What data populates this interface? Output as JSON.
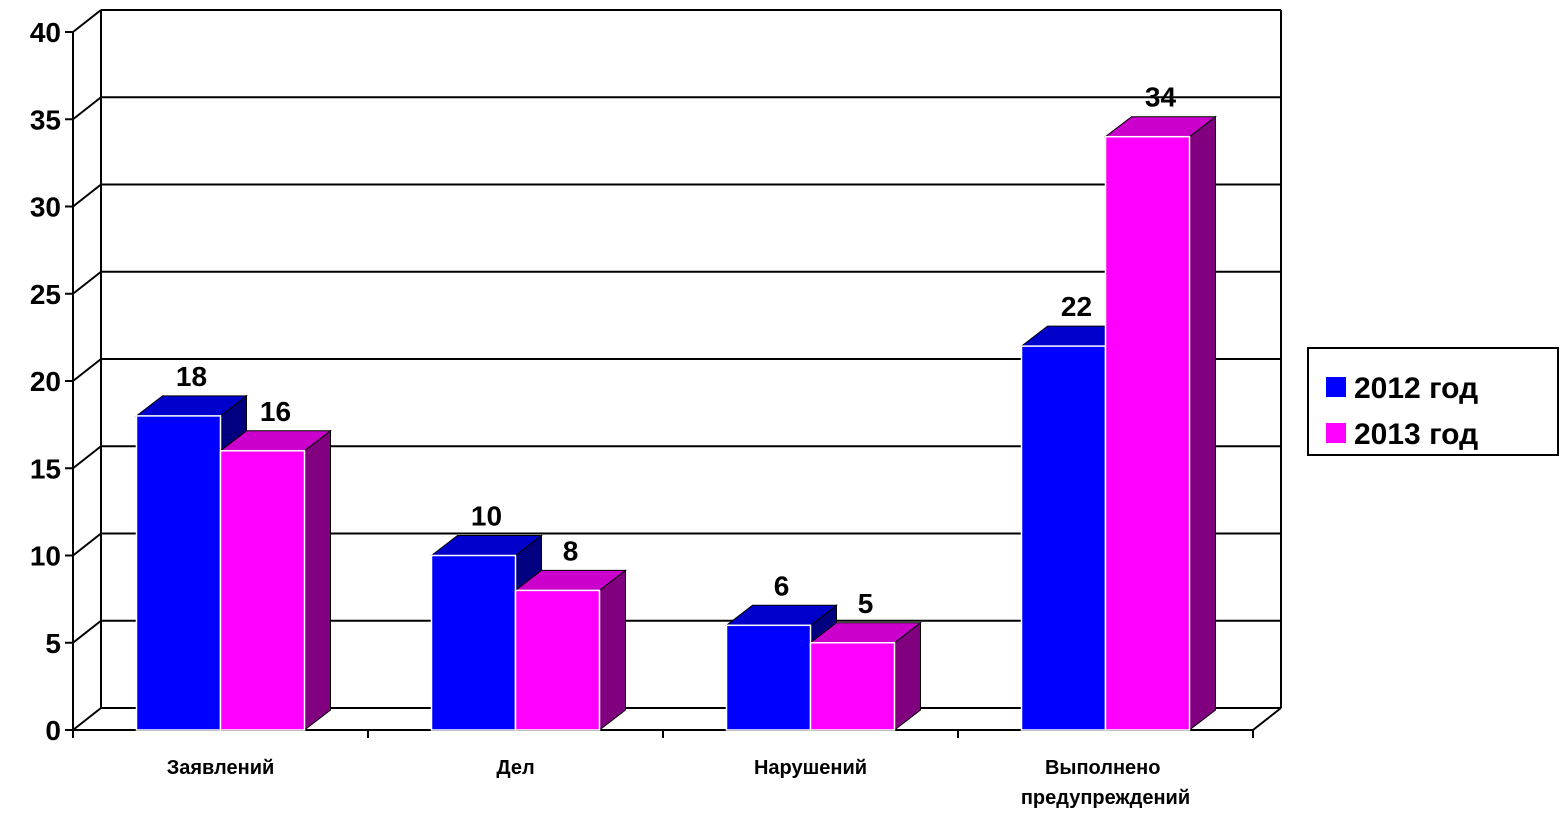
{
  "chart_data": {
    "type": "bar",
    "categories": [
      "Заявлений",
      "Дел",
      "Нарушений",
      "Выполнено предупреждений"
    ],
    "series": [
      {
        "name": "2012 год",
        "color": "#0000ff",
        "values": [
          18,
          10,
          6,
          22
        ]
      },
      {
        "name": "2013 год",
        "color": "#ff00ff",
        "values": [
          16,
          8,
          5,
          34
        ]
      }
    ],
    "ylim": [
      0,
      40
    ],
    "yticks": [
      0,
      5,
      10,
      15,
      20,
      25,
      30,
      35,
      40
    ],
    "grid": true,
    "legend": "right"
  }
}
